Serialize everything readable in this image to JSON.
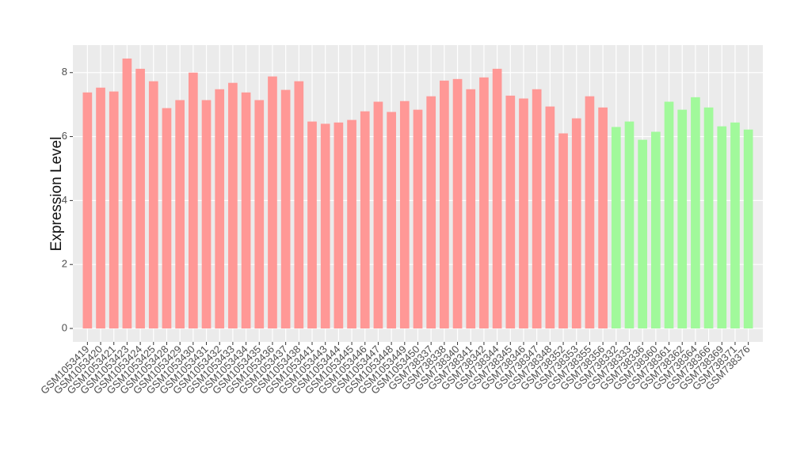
{
  "chart_data": {
    "type": "bar",
    "y_label": "Expression Level",
    "categories": [
      "GSM1053419",
      "GSM1053420",
      "GSM1053421",
      "GSM1053423",
      "GSM1053424",
      "GSM1053425",
      "GSM1053428",
      "GSM1053429",
      "GSM1053430",
      "GSM1053431",
      "GSM1053432",
      "GSM1053433",
      "GSM1053434",
      "GSM1053435",
      "GSM1053436",
      "GSM1053437",
      "GSM1053438",
      "GSM1053441",
      "GSM1053443",
      "GSM1053444",
      "GSM1053445",
      "GSM1053446",
      "GSM1053447",
      "GSM1053448",
      "GSM1053449",
      "GSM1053450",
      "GSM738337",
      "GSM738338",
      "GSM738340",
      "GSM738341",
      "GSM738342",
      "GSM738344",
      "GSM738345",
      "GSM738346",
      "GSM738347",
      "GSM738348",
      "GSM738352",
      "GSM738353",
      "GSM738355",
      "GSM738356",
      "GSM738332",
      "GSM738333",
      "GSM738336",
      "GSM738360",
      "GSM738361",
      "GSM738362",
      "GSM738364",
      "GSM738366",
      "GSM738369",
      "GSM738371",
      "GSM738376"
    ],
    "values": [
      7.38,
      7.53,
      7.41,
      8.44,
      8.12,
      7.73,
      6.89,
      7.14,
      8.0,
      7.14,
      7.48,
      7.68,
      7.38,
      7.14,
      7.88,
      7.46,
      7.73,
      6.47,
      6.4,
      6.44,
      6.52,
      6.79,
      7.09,
      6.77,
      7.11,
      6.84,
      7.26,
      7.75,
      7.8,
      7.48,
      7.85,
      8.12,
      7.28,
      7.19,
      7.48,
      6.94,
      6.1,
      6.57,
      7.26,
      6.91,
      6.3,
      6.47,
      5.9,
      6.15,
      7.09,
      6.84,
      7.23,
      6.91,
      6.32,
      6.44,
      6.22
    ],
    "colors": [
      "#ff9896",
      "#ff9896",
      "#ff9896",
      "#ff9896",
      "#ff9896",
      "#ff9896",
      "#ff9896",
      "#ff9896",
      "#ff9896",
      "#ff9896",
      "#ff9896",
      "#ff9896",
      "#ff9896",
      "#ff9896",
      "#ff9896",
      "#ff9896",
      "#ff9896",
      "#ff9896",
      "#ff9896",
      "#ff9896",
      "#ff9896",
      "#ff9896",
      "#ff9896",
      "#ff9896",
      "#ff9896",
      "#ff9896",
      "#ff9896",
      "#ff9896",
      "#ff9896",
      "#ff9896",
      "#ff9896",
      "#ff9896",
      "#ff9896",
      "#ff9896",
      "#ff9896",
      "#ff9896",
      "#ff9896",
      "#ff9896",
      "#ff9896",
      "#ff9896",
      "#a1f99b",
      "#a1f99b",
      "#a1f99b",
      "#a1f99b",
      "#a1f99b",
      "#a1f99b",
      "#a1f99b",
      "#a1f99b",
      "#a1f99b",
      "#a1f99b",
      "#a1f99b"
    ],
    "ylim": [
      -0.42,
      8.86
    ],
    "yticks": [
      0,
      2,
      4,
      6,
      8
    ],
    "grid": true
  }
}
